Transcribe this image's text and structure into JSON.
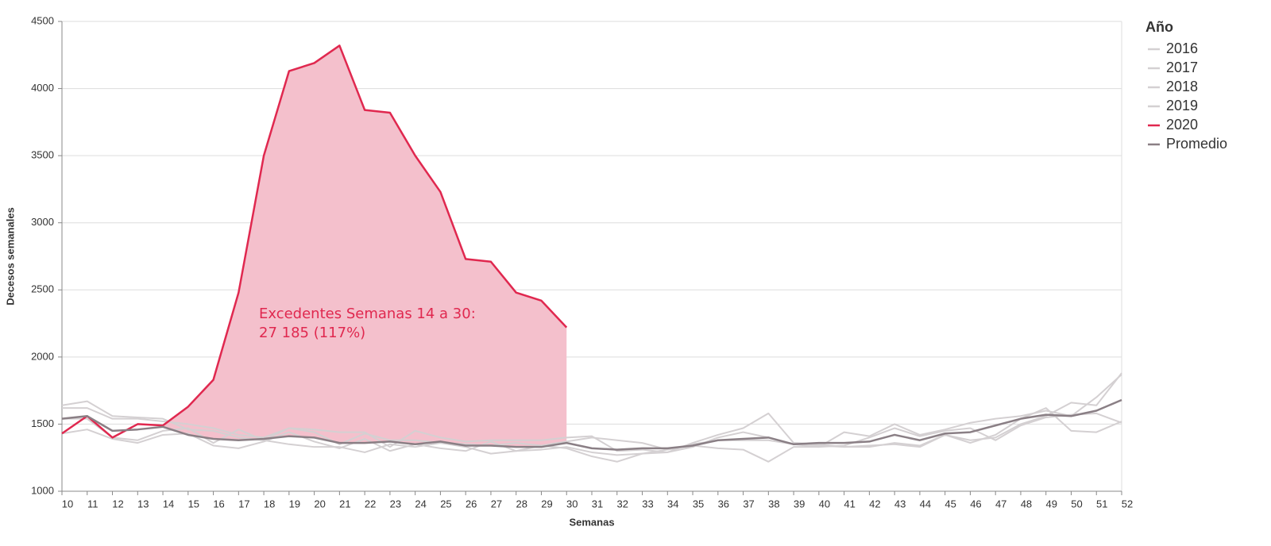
{
  "chart_data": {
    "type": "line",
    "x_label": "Semanas",
    "y_label": "Decesos semanales",
    "legend_title": "Año",
    "legend": "right",
    "annotation": [
      "Excedentes Semanas 14 a 30:",
      "27 185 (117%)"
    ],
    "shaded_range": [
      14,
      30
    ],
    "shade_color": "#f4c0cc",
    "x": [
      10,
      11,
      12,
      13,
      14,
      15,
      16,
      17,
      18,
      19,
      20,
      21,
      22,
      23,
      24,
      25,
      26,
      27,
      28,
      29,
      30,
      31,
      32,
      33,
      34,
      35,
      36,
      37,
      38,
      39,
      40,
      41,
      42,
      43,
      44,
      45,
      46,
      47,
      48,
      49,
      50,
      51,
      52
    ],
    "series": [
      {
        "name": "2016",
        "color": "#d4d0d2",
        "values": [
          1640,
          1670,
          1560,
          1550,
          1540,
          1460,
          1450,
          1400,
          1380,
          1350,
          1330,
          1330,
          1290,
          1350,
          1330,
          1360,
          1330,
          1280,
          1300,
          1310,
          1330,
          1290,
          1270,
          1280,
          1290,
          1360,
          1420,
          1470,
          1580,
          1360,
          1350,
          1330,
          1340,
          1350,
          1330,
          1420,
          1380,
          1400,
          1500,
          1560,
          1660,
          1640,
          1880
        ]
      },
      {
        "name": "2017",
        "color": "#d4d0d2",
        "values": [
          1620,
          1620,
          1540,
          1540,
          1520,
          1500,
          1470,
          1420,
          1400,
          1470,
          1460,
          1440,
          1440,
          1330,
          1450,
          1400,
          1370,
          1380,
          1380,
          1380,
          1400,
          1410,
          1300,
          1310,
          1290,
          1330,
          1400,
          1440,
          1400,
          1350,
          1340,
          1330,
          1330,
          1360,
          1340,
          1420,
          1360,
          1420,
          1540,
          1620,
          1450,
          1440,
          1520
        ]
      },
      {
        "name": "2018",
        "color": "#d4d0d2",
        "values": [
          1430,
          1460,
          1390,
          1360,
          1420,
          1430,
          1340,
          1320,
          1370,
          1440,
          1370,
          1320,
          1390,
          1300,
          1350,
          1320,
          1300,
          1370,
          1300,
          1340,
          1320,
          1260,
          1220,
          1280,
          1310,
          1340,
          1320,
          1310,
          1220,
          1330,
          1330,
          1440,
          1410,
          1500,
          1420,
          1460,
          1510,
          1540,
          1560,
          1600,
          1560,
          1700,
          1870
        ]
      },
      {
        "name": "2019",
        "color": "#d4d0d2",
        "values": [
          1540,
          1540,
          1400,
          1380,
          1450,
          1470,
          1360,
          1460,
          1380,
          1470,
          1440,
          1350,
          1430,
          1380,
          1380,
          1360,
          1350,
          1340,
          1360,
          1340,
          1370,
          1400,
          1380,
          1360,
          1310,
          1350,
          1380,
          1380,
          1380,
          1350,
          1330,
          1340,
          1400,
          1470,
          1410,
          1450,
          1470,
          1380,
          1490,
          1550,
          1570,
          1580,
          1510
        ]
      },
      {
        "name": "2020",
        "color": "#e0284f",
        "values": [
          1430,
          1560,
          1400,
          1500,
          1490,
          1630,
          1830,
          2480,
          3500,
          4130,
          4190,
          4320,
          3840,
          3820,
          3500,
          3230,
          2730,
          2710,
          2480,
          2420,
          2220,
          null,
          null,
          null,
          null,
          null,
          null,
          null,
          null,
          null,
          null,
          null,
          null,
          null,
          null,
          null,
          null,
          null,
          null,
          null,
          null,
          null,
          null
        ]
      },
      {
        "name": "Promedio",
        "color": "#8a7f85",
        "values": [
          1540,
          1560,
          1450,
          1460,
          1480,
          1420,
          1390,
          1380,
          1390,
          1410,
          1400,
          1360,
          1360,
          1370,
          1350,
          1370,
          1340,
          1340,
          1330,
          1330,
          1360,
          1320,
          1310,
          1320,
          1320,
          1340,
          1380,
          1390,
          1400,
          1350,
          1360,
          1360,
          1370,
          1420,
          1380,
          1430,
          1440,
          1490,
          1540,
          1570,
          1560,
          1600,
          1680
        ]
      }
    ],
    "xlim": [
      10,
      52
    ],
    "xticks": [
      10,
      11,
      12,
      13,
      14,
      15,
      16,
      17,
      18,
      19,
      20,
      21,
      22,
      23,
      24,
      25,
      26,
      27,
      28,
      29,
      30,
      31,
      32,
      33,
      34,
      35,
      36,
      37,
      38,
      39,
      40,
      41,
      42,
      43,
      44,
      45,
      46,
      47,
      48,
      49,
      50,
      51,
      52
    ],
    "ylim": [
      1000,
      4500
    ],
    "yticks": [
      1000,
      1500,
      2000,
      2500,
      3000,
      3500,
      4000,
      4500
    ],
    "grid": true
  }
}
